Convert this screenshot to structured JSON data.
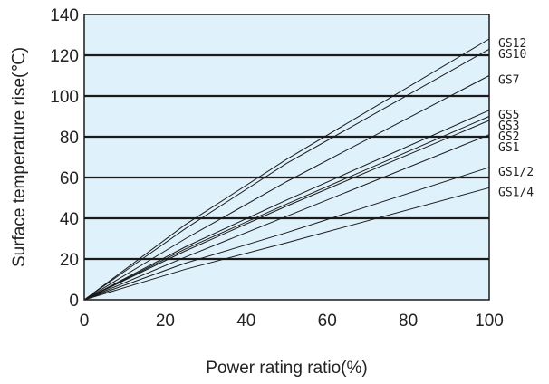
{
  "chart_data": {
    "type": "line",
    "title": "",
    "xlabel": "Power rating ratio(%)",
    "ylabel": "Surface temperature rise(℃)",
    "xlim": [
      0,
      100
    ],
    "ylim": [
      0,
      140
    ],
    "x_ticks": [
      "0",
      "20",
      "40",
      "60",
      "80",
      "100"
    ],
    "y_ticks": [
      "0",
      "20",
      "40",
      "60",
      "80",
      "100",
      "120",
      "140"
    ],
    "grid": "horizontal",
    "legend": "right-edge labels",
    "colors": {
      "plot_bg": "#dff1fb",
      "line": "#1a1a1a",
      "grid": "#1a1a1a"
    },
    "series": [
      {
        "name": "GS12",
        "x": [
          0,
          25,
          50,
          100
        ],
        "y": [
          0,
          37,
          69,
          128
        ]
      },
      {
        "name": "GS10",
        "x": [
          0,
          25,
          50,
          100
        ],
        "y": [
          0,
          35,
          67,
          123
        ]
      },
      {
        "name": "GS7",
        "x": [
          0,
          25,
          50,
          100
        ],
        "y": [
          0,
          30,
          58,
          110
        ]
      },
      {
        "name": "GS5",
        "x": [
          0,
          25,
          50,
          100
        ],
        "y": [
          0,
          26,
          49,
          93
        ]
      },
      {
        "name": "GS3",
        "x": [
          0,
          25,
          50,
          100
        ],
        "y": [
          0,
          25,
          47,
          90
        ]
      },
      {
        "name": "GS2",
        "x": [
          0,
          25,
          50,
          100
        ],
        "y": [
          0,
          24,
          46,
          88
        ]
      },
      {
        "name": "GS1",
        "x": [
          0,
          25,
          50,
          100
        ],
        "y": [
          0,
          21,
          41,
          81
        ]
      },
      {
        "name": "GS1/2",
        "x": [
          0,
          25,
          50,
          100
        ],
        "y": [
          0,
          18,
          33,
          65
        ]
      },
      {
        "name": "GS1/4",
        "x": [
          0,
          25,
          50,
          100
        ],
        "y": [
          0,
          15,
          28,
          55
        ]
      }
    ]
  }
}
